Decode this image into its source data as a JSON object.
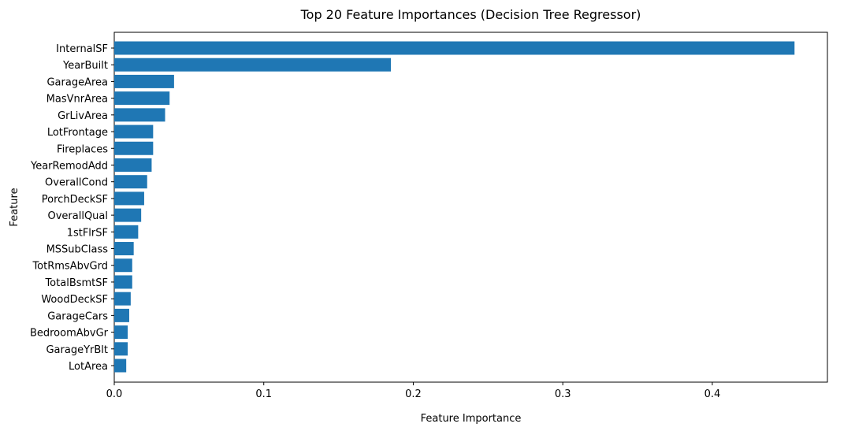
{
  "chart_data": {
    "type": "bar",
    "orientation": "horizontal",
    "title": "Top 20 Feature Importances (Decision Tree Regressor)",
    "xlabel": "Feature Importance",
    "ylabel": "Feature",
    "xlim": [
      0,
      0.477
    ],
    "xticks": [
      0.0,
      0.1,
      0.2,
      0.3,
      0.4
    ],
    "xtick_labels": [
      "0.0",
      "0.1",
      "0.2",
      "0.3",
      "0.4"
    ],
    "grid": false,
    "bar_color": "#1f77b4",
    "categories": [
      "InternalSF",
      "YearBuilt",
      "GarageArea",
      "MasVnrArea",
      "GrLivArea",
      "LotFrontage",
      "Fireplaces",
      "YearRemodAdd",
      "OverallCond",
      "PorchDeckSF",
      "OverallQual",
      "1stFlrSF",
      "MSSubClass",
      "TotRmsAbvGrd",
      "TotalBsmtSF",
      "WoodDeckSF",
      "GarageCars",
      "BedroomAbvGr",
      "GarageYrBlt",
      "LotArea"
    ],
    "values": [
      0.455,
      0.185,
      0.04,
      0.037,
      0.034,
      0.026,
      0.026,
      0.025,
      0.022,
      0.02,
      0.018,
      0.016,
      0.013,
      0.012,
      0.012,
      0.011,
      0.01,
      0.009,
      0.009,
      0.008
    ]
  }
}
